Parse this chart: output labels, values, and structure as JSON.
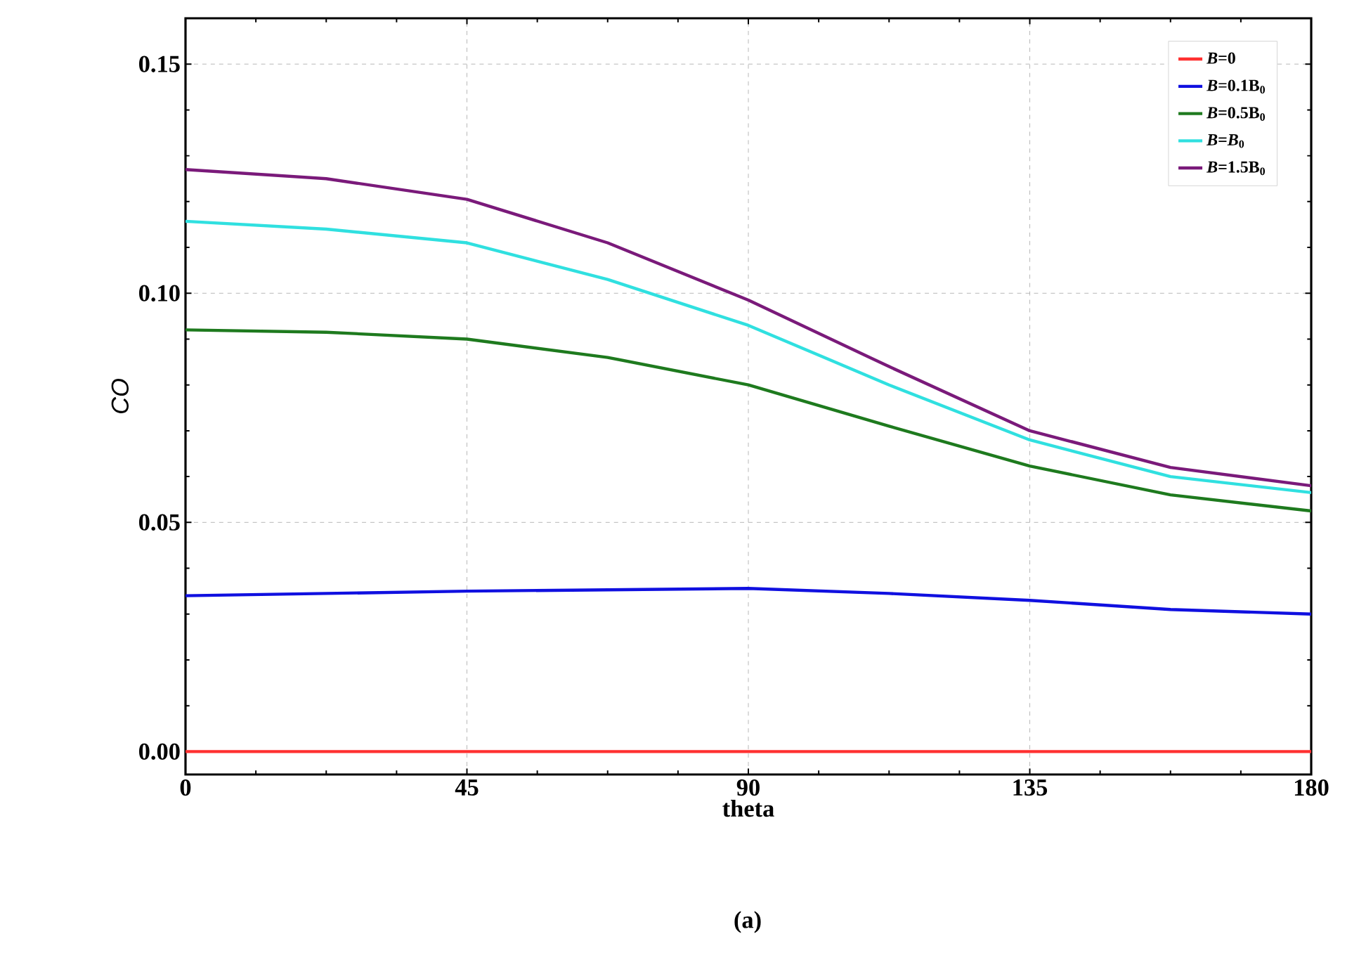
{
  "chart_data": {
    "type": "line",
    "xlabel": "theta",
    "ylabel": "CO",
    "annotations": [
      "(a)"
    ],
    "x": [
      0,
      22.5,
      45,
      67.5,
      90,
      112.5,
      135,
      157.5,
      180
    ],
    "series": [
      {
        "name": "*B*=0",
        "color": "#ff3030",
        "values": [
          0,
          0,
          0,
          0,
          0,
          0,
          0,
          0,
          0
        ]
      },
      {
        "name": "*B*=0.1B$_{0}$",
        "color": "#1010e0",
        "values": [
          0.034,
          0.0345,
          0.035,
          0.0353,
          0.0356,
          0.0345,
          0.033,
          0.031,
          0.03
        ]
      },
      {
        "name": "*B*=0.5B$_{0}$",
        "color": "#1e7a1e",
        "values": [
          0.092,
          0.0915,
          0.09,
          0.086,
          0.08,
          0.071,
          0.0623,
          0.056,
          0.0525
        ]
      },
      {
        "name": "*B*=*B*$_{0}$",
        "color": "#30e0e0",
        "values": [
          0.1157,
          0.114,
          0.111,
          0.103,
          0.093,
          0.08,
          0.068,
          0.06,
          0.0565
        ]
      },
      {
        "name": "*B*=1.5B$_{0}$",
        "color": "#7a1a7a",
        "values": [
          0.127,
          0.125,
          0.1205,
          0.111,
          0.0985,
          0.084,
          0.07,
          0.062,
          0.058
        ]
      }
    ],
    "xlim": [
      0,
      180
    ],
    "ylim": [
      -0.005,
      0.16
    ],
    "xticks": [
      0,
      45,
      90,
      135,
      180
    ],
    "yticks": [
      {
        "value": 0,
        "label": "0.00"
      },
      {
        "value": 0.05,
        "label": "0.05"
      },
      {
        "value": 0.1,
        "label": "0.10"
      },
      {
        "value": 0.15,
        "label": "0.15"
      }
    ],
    "grid": true,
    "legend": "top right",
    "marker": "none",
    "line_style": "solid"
  }
}
